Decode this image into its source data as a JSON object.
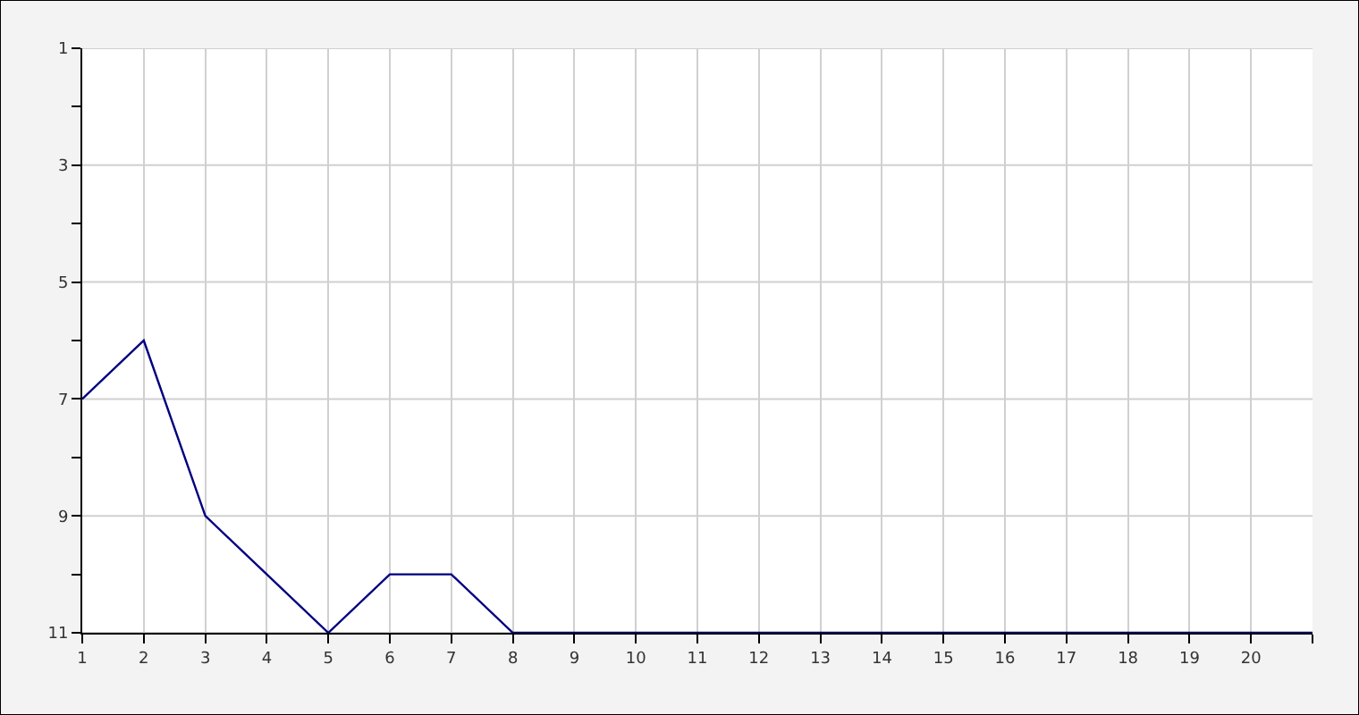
{
  "chart_data": {
    "type": "line",
    "x": [
      1,
      2,
      3,
      4,
      5,
      6,
      7,
      8,
      9,
      10,
      11,
      12,
      13,
      14,
      15,
      16,
      17,
      18,
      19,
      20,
      21
    ],
    "series": [
      {
        "color": "#000080",
        "values": [
          7,
          6,
          9,
          10,
          11,
          10,
          10,
          11,
          11,
          11,
          11,
          11,
          11,
          11,
          11,
          11,
          11,
          11,
          11,
          11,
          11
        ]
      }
    ],
    "xlim": [
      1,
      21
    ],
    "xticks": [
      1,
      2,
      3,
      4,
      5,
      6,
      7,
      8,
      9,
      10,
      11,
      12,
      13,
      14,
      15,
      16,
      17,
      18,
      19,
      20,
      {
        "value": 21,
        "label": null
      }
    ],
    "ylim": [
      11,
      1
    ],
    "yticks": [
      1,
      {
        "value": 2,
        "label": null
      },
      3,
      {
        "value": 4,
        "label": null
      },
      5,
      {
        "value": 6,
        "label": null
      },
      7,
      {
        "value": 8,
        "label": null
      },
      9,
      {
        "value": 10,
        "label": null
      },
      11
    ],
    "grid": true,
    "marker": "none",
    "line_style": "solid"
  }
}
